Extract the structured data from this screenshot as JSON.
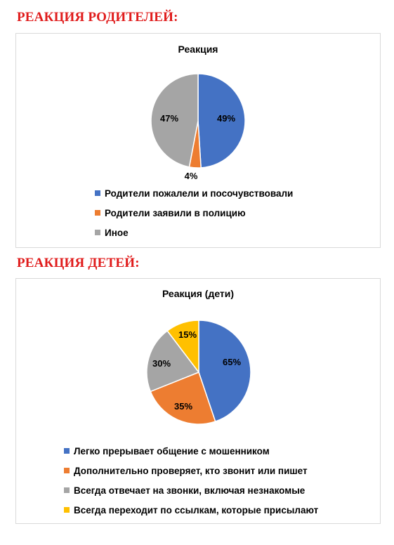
{
  "sections": [
    {
      "heading": "РЕАКЦИЯ РОДИТЕЛЕЙ:",
      "chart_title": "Реакция"
    },
    {
      "heading": "РЕАКЦИЯ ДЕТЕЙ:",
      "chart_title": "Реакция (дети)"
    }
  ],
  "chart_data": [
    {
      "type": "pie",
      "title": "Реакция",
      "legend_position": "bottom",
      "slices": [
        {
          "label": "Родители пожалели и посочувствовали",
          "value": 49,
          "display": "49%",
          "color": "#4472c4"
        },
        {
          "label": "Родители заявили в полицию",
          "value": 4,
          "display": "4%",
          "color": "#ed7d31"
        },
        {
          "label": "Иное",
          "value": 47,
          "display": "47%",
          "color": "#a5a5a5"
        }
      ]
    },
    {
      "type": "pie",
      "title": "Реакция (дети)",
      "legend_position": "bottom",
      "slices": [
        {
          "label": "Легко прерывает общение с мошенником",
          "value": 65,
          "display": "65%",
          "color": "#4472c4"
        },
        {
          "label": "Дополнительно проверяет, кто звонит или пишет",
          "value": 35,
          "display": "35%",
          "color": "#ed7d31"
        },
        {
          "label": "Всегда отвечает на звонки, включая незнакомые",
          "value": 30,
          "display": "30%",
          "color": "#a5a5a5"
        },
        {
          "label": "Всегда переходит по ссылкам, которые присылают",
          "value": 15,
          "display": "15%",
          "color": "#ffc000"
        }
      ]
    }
  ]
}
